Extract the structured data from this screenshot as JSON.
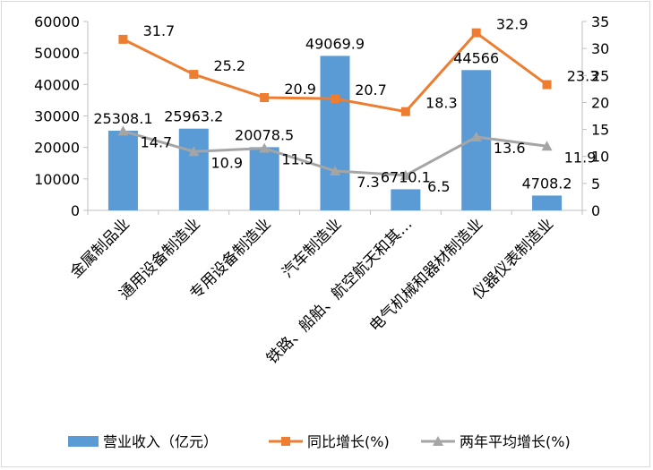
{
  "chart_data": {
    "type": "bar",
    "categories": [
      "金属制品业",
      "通用设备制造业",
      "专用设备制造业",
      "汽车制造业",
      "铁路、船舶、航空航天和其…",
      "电气机械和器材制造业",
      "仪器仪表制造业"
    ],
    "series": [
      {
        "name": "营业收入（亿元）",
        "type": "bar",
        "axis": "left",
        "color": "#5b9bd5",
        "values": [
          25308.1,
          25963.2,
          20078.5,
          49069.9,
          6710.1,
          44566,
          4708.2
        ],
        "labels": [
          "25308.1",
          "25963.2",
          "20078.5",
          "49069.9",
          "6710.1",
          "44566",
          "4708.2"
        ]
      },
      {
        "name": "同比增长(%)",
        "type": "line",
        "axis": "right",
        "color": "#ed7d31",
        "marker": "square",
        "values": [
          31.7,
          25.2,
          20.9,
          20.7,
          18.3,
          32.9,
          23.3
        ],
        "labels": [
          "31.7",
          "25.2",
          "20.9",
          "20.7",
          "18.3",
          "32.9",
          "23.3"
        ]
      },
      {
        "name": "两年平均增长(%)",
        "type": "line",
        "axis": "right",
        "color": "#a5a5a5",
        "marker": "triangle",
        "values": [
          14.7,
          10.9,
          11.5,
          7.3,
          6.5,
          13.6,
          11.9
        ],
        "labels": [
          "14.7",
          "10.9",
          "11.5",
          "7.3",
          "6.5",
          "13.6",
          "11.9"
        ]
      }
    ],
    "y_left": {
      "min": 0,
      "max": 60000,
      "ticks": [
        "0",
        "10000",
        "20000",
        "30000",
        "40000",
        "50000",
        "60000"
      ]
    },
    "y_right": {
      "min": 0,
      "max": 35,
      "ticks": [
        "0",
        "5",
        "10",
        "15",
        "20",
        "25",
        "30",
        "35"
      ]
    },
    "grid": false,
    "legend_position": "bottom"
  }
}
